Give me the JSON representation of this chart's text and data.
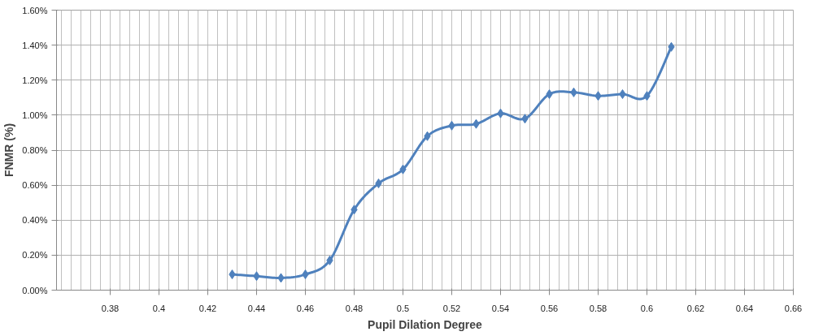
{
  "chart_data": {
    "type": "line",
    "xlabel": "Pupil Dilation Degree",
    "ylabel": "FNMR (%)",
    "x": [
      0.43,
      0.44,
      0.45,
      0.46,
      0.47,
      0.48,
      0.49,
      0.5,
      0.51,
      0.52,
      0.53,
      0.54,
      0.55,
      0.56,
      0.57,
      0.58,
      0.59,
      0.6,
      0.61
    ],
    "series": [
      {
        "color": "#4f81bd",
        "values": [
          0.09,
          0.08,
          0.07,
          0.09,
          0.17,
          0.46,
          0.61,
          0.69,
          0.88,
          0.94,
          0.95,
          1.01,
          0.98,
          1.12,
          1.13,
          1.11,
          1.12,
          1.11,
          1.39
        ]
      }
    ],
    "xlim": [
      0.358,
      0.66
    ],
    "xticks": [
      0.38,
      0.4,
      0.42,
      0.44,
      0.46,
      0.48,
      0.5,
      0.52,
      0.54,
      0.56,
      0.58,
      0.6,
      0.62,
      0.64,
      0.66
    ],
    "ylim": [
      0,
      1.6
    ],
    "yticks": [
      {
        "value": 0,
        "label": "0.00%"
      },
      {
        "value": 0.2,
        "label": "0.20%"
      },
      {
        "value": 0.4,
        "label": "0.40%"
      },
      {
        "value": 0.6,
        "label": "0.60%"
      },
      {
        "value": 0.8,
        "label": "0.80%"
      },
      {
        "value": 1.0,
        "label": "1.00%"
      },
      {
        "value": 1.2,
        "label": "1.20%"
      },
      {
        "value": 1.4,
        "label": "1.40%"
      },
      {
        "value": 1.6,
        "label": "1.60%"
      }
    ],
    "grid": true,
    "marker": "diamond",
    "line_style": "solid"
  }
}
